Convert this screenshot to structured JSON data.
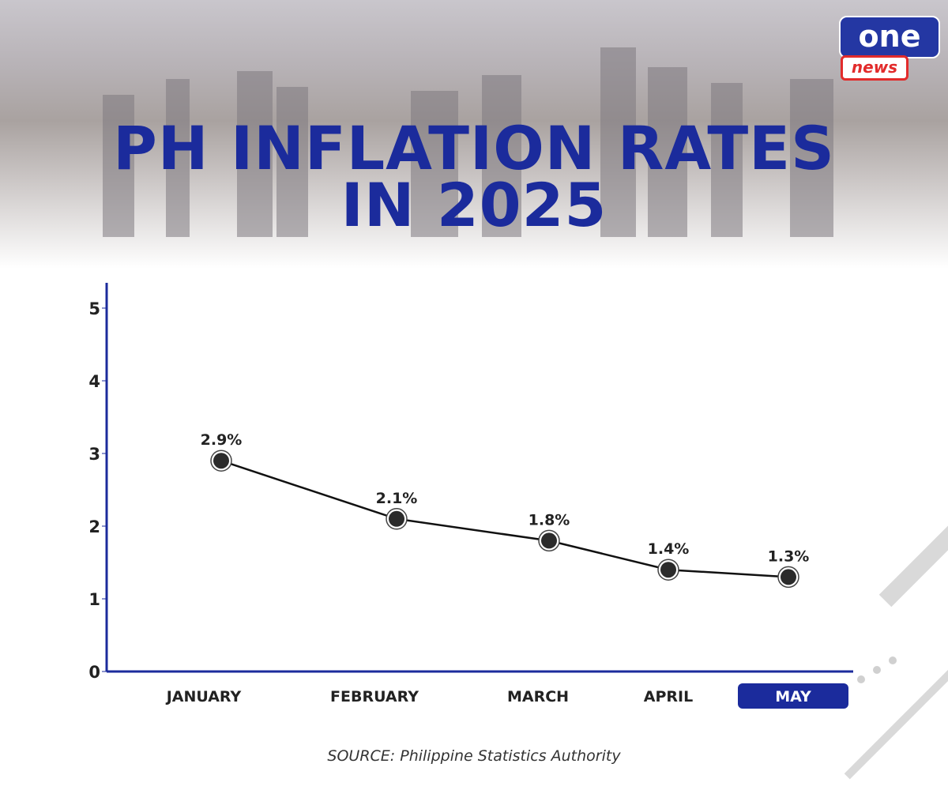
{
  "brand": {
    "logo_top": "one",
    "logo_bottom": "news",
    "colors": {
      "primary": "#1b2b9c",
      "accent": "#e22b2b"
    }
  },
  "title_lines": [
    "PH INFLATION RATES",
    "IN 2025"
  ],
  "source": "SOURCE: Philippine Statistics Authority",
  "chart_data": {
    "type": "line",
    "title": "PH INFLATION RATES IN 2025",
    "categories": [
      "JANUARY",
      "FEBRUARY",
      "MARCH",
      "APRIL",
      "MAY"
    ],
    "values": [
      2.9,
      2.1,
      1.8,
      1.4,
      1.3
    ],
    "data_labels": [
      "2.9%",
      "2.1%",
      "1.8%",
      "1.4%",
      "1.3%"
    ],
    "highlighted_category": "MAY",
    "yticks": [
      "0",
      "1",
      "2",
      "3",
      "4",
      "5"
    ],
    "ylim": [
      0,
      5
    ],
    "grid": false,
    "colors": {
      "axis": "#1b2b9c",
      "line": "#111111",
      "marker": "#2b2b2b",
      "highlight": "#1b2b9c"
    }
  }
}
